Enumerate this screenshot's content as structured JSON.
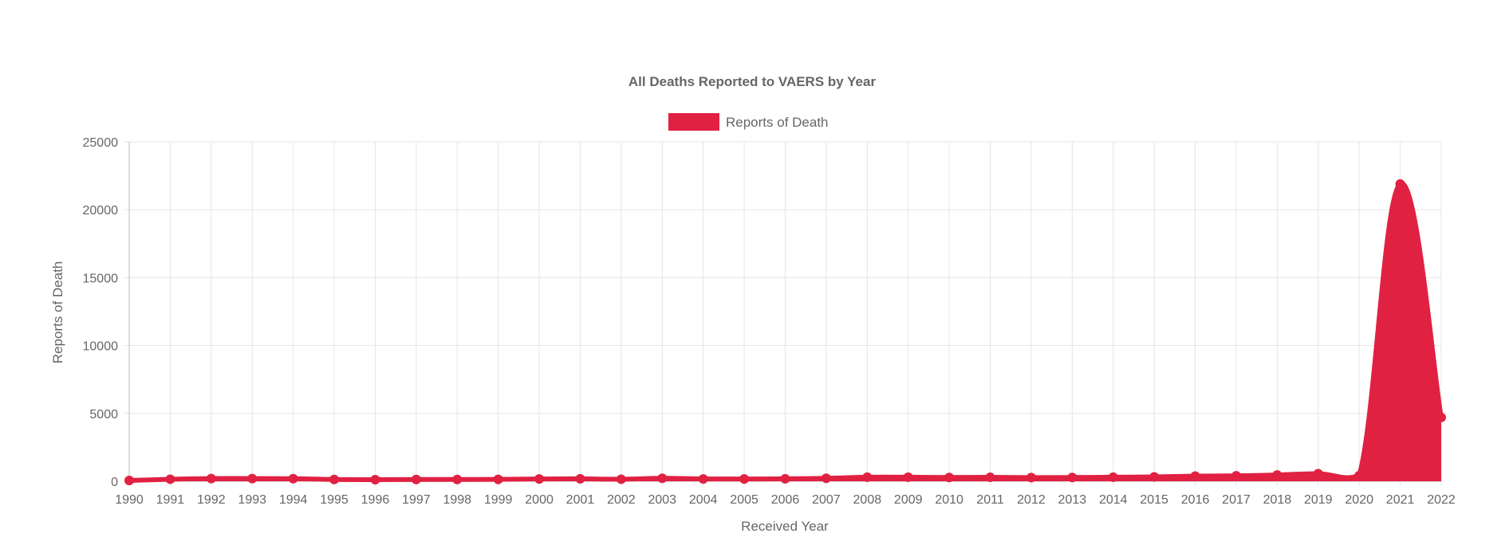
{
  "chart_data": {
    "type": "area",
    "title": "All Deaths Reported to VAERS by Year",
    "xlabel": "Received Year",
    "ylabel": "Reports of Death",
    "ylim": [
      0,
      25000
    ],
    "y_ticks": [
      "0",
      "5000",
      "10000",
      "15000",
      "20000",
      "25000"
    ],
    "grid": true,
    "legend_position": "top-center",
    "categories": [
      "1990",
      "1991",
      "1992",
      "1993",
      "1994",
      "1995",
      "1996",
      "1997",
      "1998",
      "1999",
      "2000",
      "2001",
      "2002",
      "2003",
      "2004",
      "2005",
      "2006",
      "2007",
      "2008",
      "2009",
      "2010",
      "2011",
      "2012",
      "2013",
      "2014",
      "2015",
      "2016",
      "2017",
      "2018",
      "2019",
      "2020",
      "2021",
      "2022"
    ],
    "series": [
      {
        "name": "Reports of Death",
        "color": "#e12142",
        "values": [
          60,
          150,
          200,
          200,
          190,
          130,
          120,
          130,
          130,
          140,
          170,
          180,
          150,
          220,
          170,
          170,
          180,
          220,
          300,
          300,
          280,
          290,
          270,
          280,
          300,
          320,
          380,
          400,
          460,
          560,
          420,
          21900,
          4700
        ]
      }
    ]
  }
}
